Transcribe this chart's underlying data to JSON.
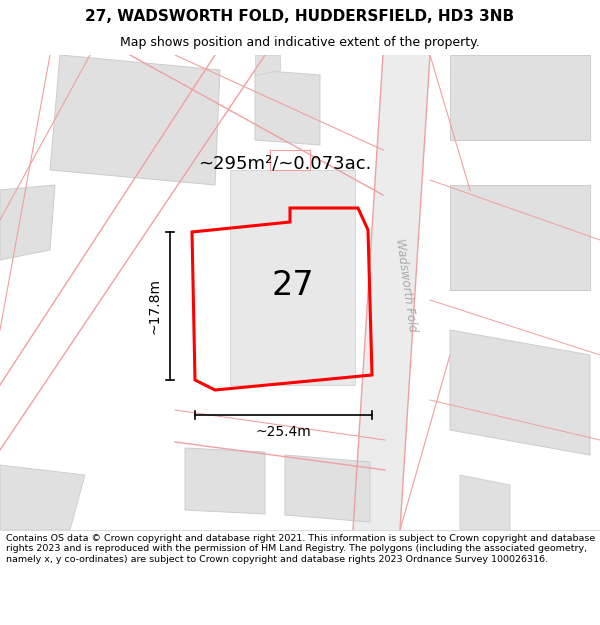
{
  "title": "27, WADSWORTH FOLD, HUDDERSFIELD, HD3 3NB",
  "subtitle": "Map shows position and indicative extent of the property.",
  "copyright": "Contains OS data © Crown copyright and database right 2021. This information is subject to Crown copyright and database rights 2023 and is reproduced with the permission of HM Land Registry. The polygons (including the associated geometry, namely x, y co-ordinates) are subject to Crown copyright and database rights 2023 Ordnance Survey 100026316.",
  "area_label": "~295m²/~0.073ac.",
  "width_label": "~25.4m",
  "height_label": "~17.8m",
  "road_label": "Wadsworth Fold",
  "plot_number": "27",
  "map_bg": "#f2f2f2",
  "building_fill": "#e0e0e0",
  "building_edge": "#cccccc",
  "plot_outline_color": "#ff0000",
  "road_line_color": "#f0a0a0",
  "road_fill": "#f5f5f5",
  "dim_line_color": "#000000",
  "road_label_color": "#aaaaaa",
  "title_fontsize": 11,
  "subtitle_fontsize": 9,
  "copyright_fontsize": 6.8
}
